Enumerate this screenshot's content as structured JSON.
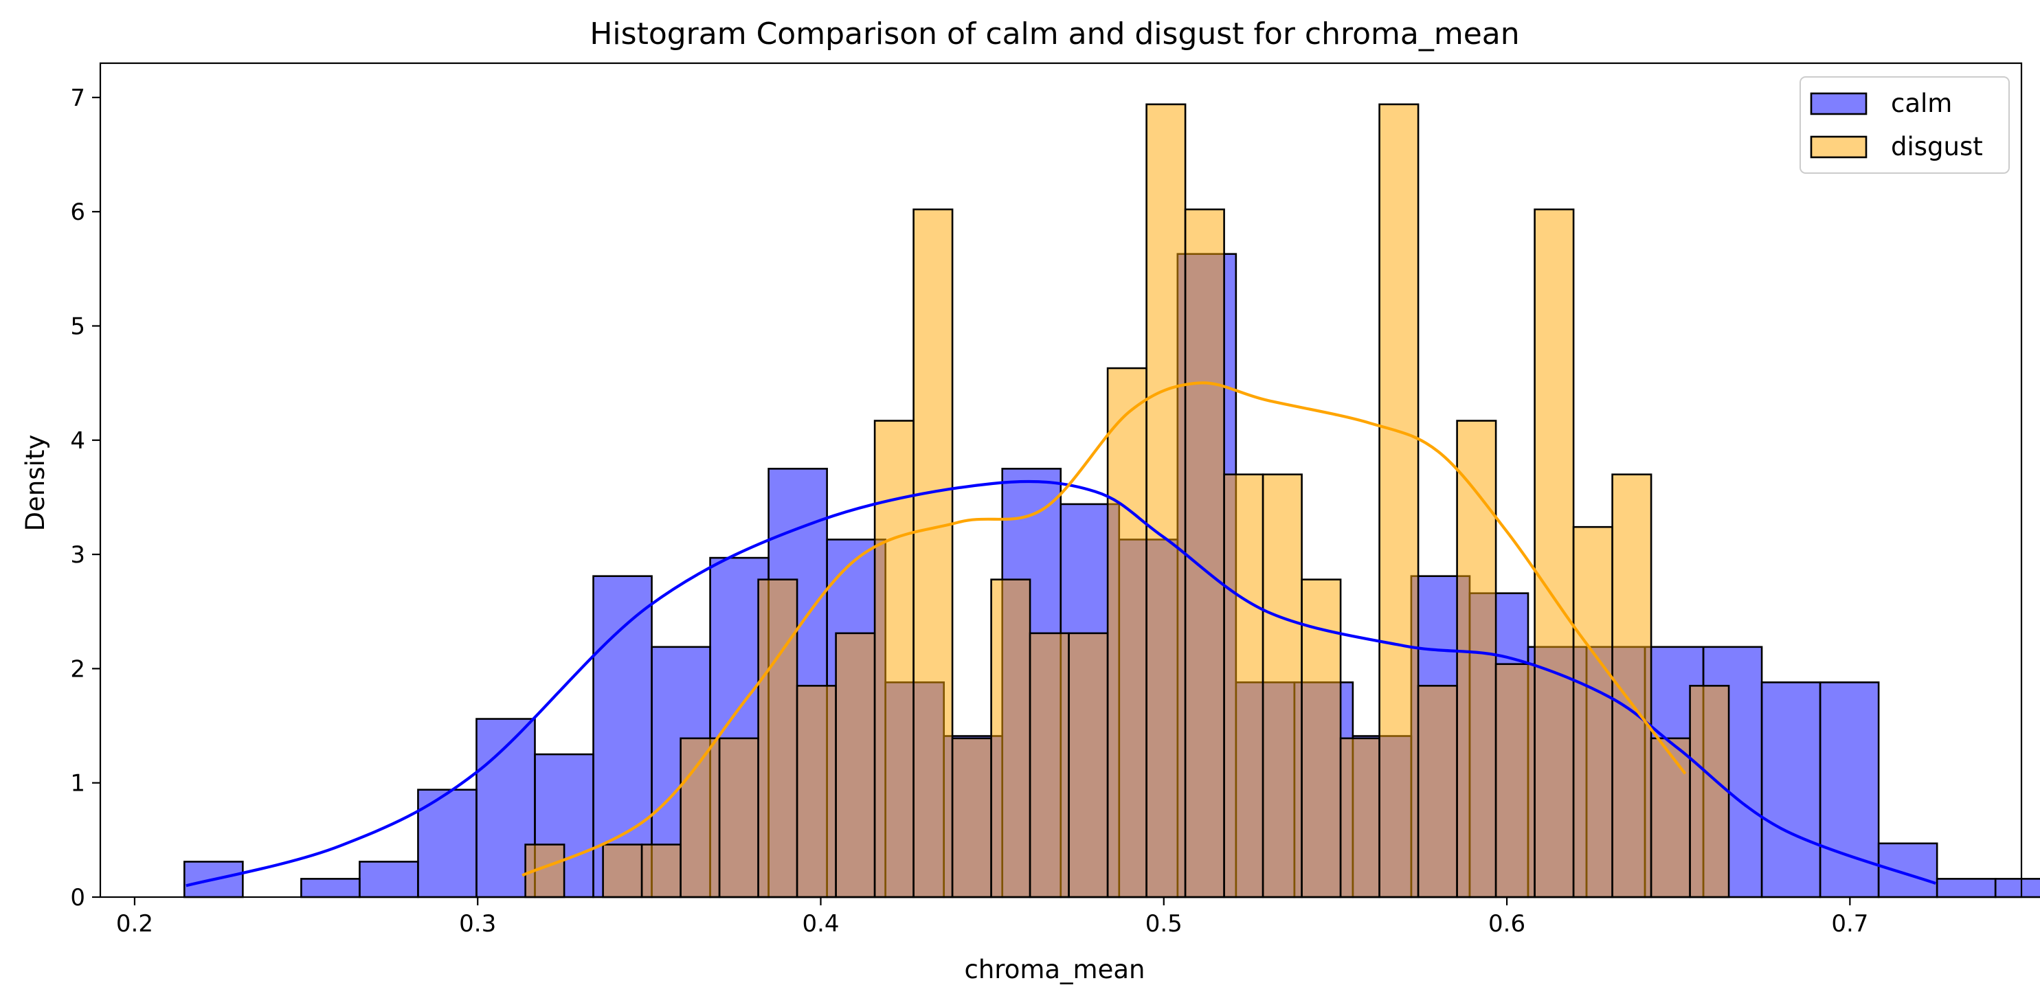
{
  "chart_data": {
    "type": "bar",
    "title": "Histogram Comparison of calm and disgust for chroma_mean",
    "xlabel": "chroma_mean",
    "ylabel": "Density",
    "xlim": [
      0.19,
      0.75
    ],
    "ylim": [
      0,
      7.3
    ],
    "xticks": [
      0.2,
      0.3,
      0.4,
      0.5,
      0.6,
      0.7
    ],
    "yticks": [
      0,
      1,
      2,
      3,
      4,
      5,
      6,
      7
    ],
    "grid": false,
    "legend_position": "top-right",
    "series": [
      {
        "name": "calm",
        "color": "#0000ff",
        "edge_color": "#000000",
        "bin_start": 0.2145,
        "bin_width": 0.01703,
        "values": [
          0.31,
          0,
          0.16,
          0.31,
          0.94,
          1.56,
          1.25,
          2.81,
          2.19,
          2.97,
          3.75,
          3.13,
          1.88,
          1.41,
          3.75,
          3.44,
          3.13,
          5.63,
          1.88,
          1.88,
          1.41,
          2.81,
          2.66,
          2.19,
          2.19,
          2.19,
          2.19,
          1.88,
          1.88,
          0.47,
          0.16,
          0.16,
          0.16
        ],
        "kde_x": [
          0.215,
          0.26,
          0.3,
          0.35,
          0.4,
          0.45,
          0.48,
          0.5,
          0.53,
          0.57,
          0.6,
          0.63,
          0.65,
          0.68,
          0.725
        ],
        "kde_y": [
          0.1,
          0.45,
          1.1,
          2.55,
          3.3,
          3.62,
          3.55,
          3.15,
          2.5,
          2.2,
          2.1,
          1.75,
          1.3,
          0.6,
          0.12
        ]
      },
      {
        "name": "disgust",
        "color": "#ffa500",
        "edge_color": "#000000",
        "bin_start": 0.3139,
        "bin_width": 0.011316,
        "values": [
          0.46,
          0,
          0.46,
          0.46,
          1.39,
          1.39,
          2.78,
          1.85,
          2.31,
          4.17,
          6.02,
          1.39,
          2.78,
          2.31,
          2.31,
          4.63,
          6.94,
          6.02,
          3.7,
          3.7,
          2.78,
          1.39,
          6.94,
          1.85,
          4.17,
          2.04,
          6.02,
          3.24,
          3.7,
          1.39,
          1.85
        ],
        "kde_x": [
          0.313,
          0.35,
          0.38,
          0.41,
          0.44,
          0.465,
          0.49,
          0.51,
          0.53,
          0.56,
          0.58,
          0.6,
          0.62,
          0.64,
          0.652
        ],
        "kde_y": [
          0.19,
          0.7,
          1.8,
          2.95,
          3.28,
          3.4,
          4.25,
          4.5,
          4.35,
          4.15,
          3.9,
          3.2,
          2.35,
          1.55,
          1.08
        ]
      }
    ]
  }
}
